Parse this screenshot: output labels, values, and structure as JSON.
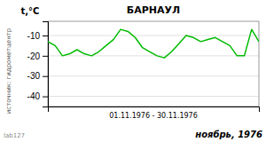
{
  "chart_data": {
    "type": "line",
    "title": "БАРНАУЛ",
    "ylabel": "t,°C",
    "xlabel": "01.11.1976 - 30.11.1976",
    "annotations": [
      "ноябрь, 1976",
      "источник: гидрометцентр",
      "lab127"
    ],
    "x": [
      1,
      2,
      3,
      4,
      5,
      6,
      7,
      8,
      9,
      10,
      11,
      12,
      13,
      14,
      15,
      16,
      17,
      18,
      19,
      20,
      21,
      22,
      23,
      24,
      25,
      26,
      27,
      28,
      29,
      30
    ],
    "values": [
      -13,
      -15,
      -20,
      -19,
      -17,
      -19,
      -20,
      -18,
      -15,
      -12,
      -7,
      -8,
      -11,
      -16,
      -18,
      -20,
      -21,
      -18,
      -14,
      -10,
      -11,
      -13,
      -12,
      -11,
      -13,
      -15,
      -20,
      -20,
      -7,
      -13
    ],
    "color": "#00bb00",
    "xlim": [
      1,
      30
    ],
    "ylim": [
      -45,
      -3
    ],
    "yticks": [
      -40,
      -30,
      -20,
      -10
    ],
    "grid": true,
    "tick_labels": "y"
  }
}
